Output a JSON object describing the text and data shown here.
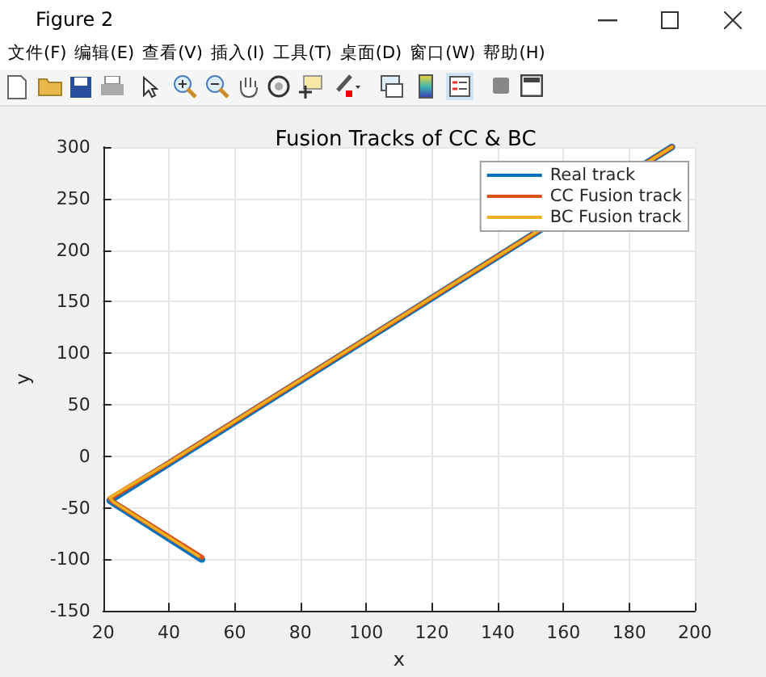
{
  "chart_data": {
    "type": "line",
    "title": "Fusion Tracks of CC & BC",
    "xlabel": "x",
    "ylabel": "y",
    "annotations": [
      "Figure 2",
      "文件(F)",
      "编辑(E)",
      "查看(V)",
      "插入(I)",
      "工具(T)",
      "桌面(D)",
      "窗口(W)",
      "帮助(H)"
    ],
    "series": [
      {
        "name": "Real track",
        "color": "#0072bd",
        "x": [
          50,
          22,
          40,
          193
        ],
        "values": [
          -100,
          -43,
          -7,
          300
        ]
      },
      {
        "name": "CC Fusion track",
        "color": "#d95319",
        "x": [
          50,
          23,
          22,
          40,
          193
        ],
        "values": [
          -98,
          -44,
          -41,
          -6,
          300
        ]
      },
      {
        "name": "BC Fusion track",
        "color": "#edb120",
        "x": [
          49,
          23,
          22,
          40,
          193
        ],
        "values": [
          -97,
          -44,
          -40,
          -6,
          300
        ]
      }
    ],
    "xlim": [
      20,
      200
    ],
    "xticks": [
      20,
      40,
      60,
      80,
      100,
      120,
      140,
      160,
      180,
      200
    ],
    "ylim": [
      -150,
      300
    ],
    "yticks": [
      -150,
      -100,
      -50,
      0,
      50,
      100,
      150,
      200,
      250,
      300
    ],
    "grid": true,
    "legend": "top right",
    "marker": "none",
    "line_style": "solid"
  }
}
